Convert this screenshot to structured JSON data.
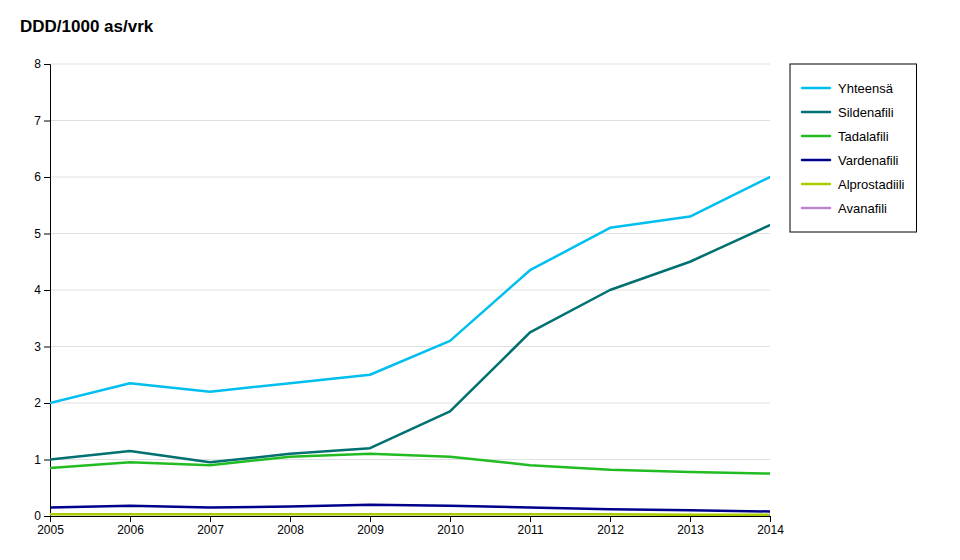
{
  "chart_data": {
    "type": "line",
    "title": "DDD/1000 as/vrk",
    "x": [
      2005,
      2006,
      2007,
      2008,
      2009,
      2010,
      2011,
      2012,
      2013,
      2014
    ],
    "series": [
      {
        "name": "Yhteensä",
        "color": "#00BFEF",
        "values": [
          2.0,
          2.35,
          2.2,
          2.35,
          2.5,
          3.1,
          4.35,
          5.1,
          5.3,
          6.0
        ]
      },
      {
        "name": "Sildenafili",
        "color": "#007070",
        "values": [
          1.0,
          1.15,
          0.95,
          1.1,
          1.2,
          1.85,
          3.25,
          4.0,
          4.5,
          5.15
        ]
      },
      {
        "name": "Tadalafili",
        "color": "#22BB22",
        "values": [
          0.85,
          0.95,
          0.9,
          1.05,
          1.1,
          1.05,
          0.9,
          0.82,
          0.78,
          0.75
        ]
      },
      {
        "name": "Vardenafili",
        "color": "#00008B",
        "values": [
          0.15,
          0.18,
          0.15,
          0.17,
          0.2,
          0.18,
          0.15,
          0.12,
          0.1,
          0.08
        ]
      },
      {
        "name": "Alprostadiili",
        "color": "#AACC00",
        "values": [
          0.03,
          0.03,
          0.03,
          0.03,
          0.03,
          0.03,
          0.03,
          0.03,
          0.02,
          0.02
        ]
      },
      {
        "name": "Avanafili",
        "color": "#BB88CC",
        "values": [
          null,
          null,
          null,
          null,
          null,
          null,
          null,
          null,
          null,
          0.02
        ]
      }
    ],
    "xlim": [
      2005,
      2014
    ],
    "xticks": [
      2005,
      2006,
      2007,
      2008,
      2009,
      2010,
      2011,
      2012,
      2013,
      2014
    ],
    "ylim": [
      0,
      8
    ],
    "yticks": [
      0,
      1,
      2,
      3,
      4,
      5,
      6,
      7,
      8
    ],
    "grid": true,
    "legend": "right"
  }
}
